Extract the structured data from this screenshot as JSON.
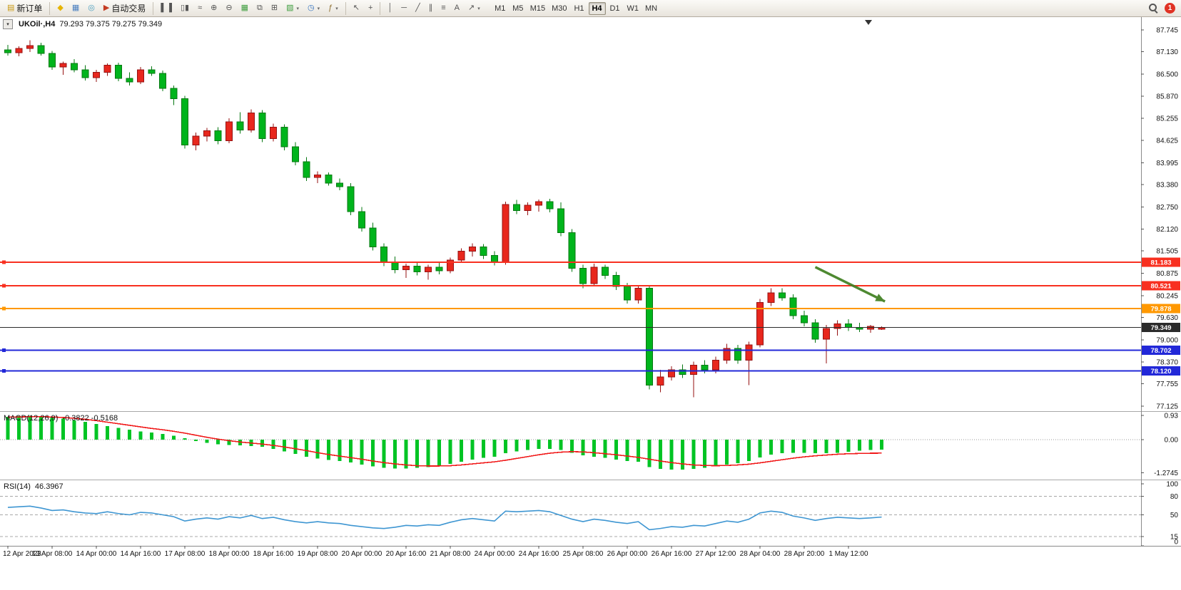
{
  "icons": {
    "chevron_down": "▾",
    "dropdown_arrow": "▾"
  },
  "toolbar": {
    "items": [
      {
        "type": "button",
        "name": "new-order-button",
        "icon": "new-order-icon",
        "glyph": "▤",
        "glyph_color": "#c89810",
        "label": "新订单"
      },
      {
        "type": "separator"
      },
      {
        "type": "button",
        "name": "charts-profile-button",
        "icon": "profile-diamond-icon",
        "glyph": "◆",
        "glyph_color": "#e6b400"
      },
      {
        "type": "button",
        "name": "market-watch-button",
        "icon": "market-watch-icon",
        "glyph": "▦",
        "glyph_color": "#4a7fc0"
      },
      {
        "type": "button",
        "name": "data-window-button",
        "icon": "data-window-icon",
        "glyph": "◎",
        "glyph_color": "#4a9fc0"
      },
      {
        "type": "button",
        "name": "auto-trading-button",
        "icon": "play-icon",
        "glyph": "▶",
        "glyph_color": "#c43b22",
        "label": "自动交易"
      },
      {
        "type": "separator"
      },
      {
        "type": "button",
        "name": "bar-chart-mode-button",
        "icon": "bar-chart-icon",
        "glyph": "▌▐"
      },
      {
        "type": "button",
        "name": "candlestick-mode-button",
        "icon": "candlestick-icon",
        "glyph": "▯▮"
      },
      {
        "type": "button",
        "name": "line-chart-mode-button",
        "icon": "line-chart-icon",
        "glyph": "≈"
      },
      {
        "type": "button",
        "name": "zoom-in-button",
        "icon": "zoom-in-icon",
        "glyph": "⊕"
      },
      {
        "type": "button",
        "name": "zoom-out-button",
        "icon": "zoom-out-icon",
        "glyph": "⊖"
      },
      {
        "type": "button",
        "name": "tile-windows-button",
        "icon": "tile-windows-icon",
        "glyph": "▦",
        "glyph_color": "#3f9e3f"
      },
      {
        "type": "button",
        "name": "cascade-windows-button",
        "icon": "cascade-windows-icon",
        "glyph": "⧉"
      },
      {
        "type": "button",
        "name": "arrange-windows-button",
        "icon": "arrange-windows-icon",
        "glyph": "⊞"
      },
      {
        "type": "button",
        "name": "new-chart-button",
        "icon": "new-chart-icon",
        "glyph": "▧",
        "glyph_color": "#3f9e3f",
        "dropdown": true
      },
      {
        "type": "button",
        "name": "period-button",
        "icon": "clock-icon",
        "glyph": "◷",
        "glyph_color": "#2f6fbf",
        "dropdown": true
      },
      {
        "type": "button",
        "name": "indicators-button",
        "icon": "indicator-function-icon",
        "glyph": "ƒ",
        "glyph_color": "#8f6f2f",
        "dropdown": true
      },
      {
        "type": "separator"
      },
      {
        "type": "button",
        "name": "cursor-tool-button",
        "icon": "cursor-arrow-icon",
        "glyph": "↖"
      },
      {
        "type": "button",
        "name": "crosshair-tool-button",
        "icon": "crosshair-icon",
        "glyph": "+"
      },
      {
        "type": "separator"
      },
      {
        "type": "button",
        "name": "vertical-line-tool-button",
        "icon": "vertical-line-icon",
        "glyph": "│"
      },
      {
        "type": "button",
        "name": "horizontal-line-tool-button",
        "icon": "horizontal-line-icon",
        "glyph": "─"
      },
      {
        "type": "button",
        "name": "trendline-tool-button",
        "icon": "trendline-icon",
        "glyph": "╱"
      },
      {
        "type": "button",
        "name": "channel-tool-button",
        "icon": "channel-icon",
        "glyph": "∥"
      },
      {
        "type": "button",
        "name": "fibonacci-tool-button",
        "icon": "fibonacci-icon",
        "glyph": "≡"
      },
      {
        "type": "button",
        "name": "text-tool-button",
        "icon": "text-icon",
        "glyph": "A"
      },
      {
        "type": "button",
        "name": "arrows-tool-button",
        "icon": "arrow-annotation-icon",
        "glyph": "↗",
        "dropdown": true
      }
    ],
    "timeframes": [
      "M1",
      "M5",
      "M15",
      "M30",
      "H1",
      "H4",
      "D1",
      "W1",
      "MN"
    ],
    "active_timeframe": "H4",
    "notification_count": "1"
  },
  "chart": {
    "symbol": "UKOil·,H4",
    "ohlc": "79.293 79.375 79.275 79.349",
    "macd_name": "MACD(12,26,9)",
    "macd_values": "-0.3822 -0.5168",
    "rsi_name": "RSI(14)",
    "rsi_value": "46.3967",
    "price_axis_labels": [
      "87.745",
      "87.130",
      "86.500",
      "85.870",
      "85.255",
      "84.625",
      "83.995",
      "83.380",
      "82.750",
      "82.120",
      "81.505",
      "80.875",
      "80.245",
      "79.630",
      "79.000",
      "78.370",
      "77.755",
      "77.125"
    ],
    "macd_axis_labels": [
      "0.93",
      "0.00",
      "-1.2745"
    ],
    "rsi_axis_labels": [
      "100",
      "80",
      "50",
      "15",
      "0"
    ]
  },
  "chart_data": {
    "type": "candlestick",
    "symbol": "UKOil",
    "timeframe": "H4",
    "ohlc_current": {
      "open": 79.293,
      "high": 79.375,
      "low": 79.275,
      "close": 79.349
    },
    "ylim": [
      77.125,
      87.745
    ],
    "bull_color": "#e8271d",
    "bull_border": "#961212",
    "bear_color": "#00b41c",
    "bear_border": "#067812",
    "candles": [
      [
        87.18,
        87.32,
        87.02,
        87.1
      ],
      [
        87.1,
        87.28,
        87.0,
        87.22
      ],
      [
        87.22,
        87.45,
        87.12,
        87.3
      ],
      [
        87.3,
        87.38,
        87.02,
        87.08
      ],
      [
        87.08,
        87.15,
        86.62,
        86.7
      ],
      [
        86.7,
        86.85,
        86.48,
        86.8
      ],
      [
        86.8,
        86.92,
        86.55,
        86.62
      ],
      [
        86.62,
        86.75,
        86.32,
        86.4
      ],
      [
        86.4,
        86.62,
        86.28,
        86.55
      ],
      [
        86.55,
        86.8,
        86.45,
        86.75
      ],
      [
        86.75,
        86.82,
        86.3,
        86.38
      ],
      [
        86.38,
        86.55,
        86.18,
        86.28
      ],
      [
        86.28,
        86.7,
        86.22,
        86.62
      ],
      [
        86.62,
        86.72,
        86.45,
        86.52
      ],
      [
        86.52,
        86.6,
        86.02,
        86.1
      ],
      [
        86.1,
        86.18,
        85.62,
        85.8
      ],
      [
        85.8,
        85.88,
        84.4,
        84.5
      ],
      [
        84.5,
        84.85,
        84.35,
        84.75
      ],
      [
        84.75,
        84.98,
        84.6,
        84.9
      ],
      [
        84.9,
        85.0,
        84.52,
        84.62
      ],
      [
        84.62,
        85.25,
        84.55,
        85.15
      ],
      [
        85.15,
        85.42,
        84.82,
        84.92
      ],
      [
        84.92,
        85.5,
        84.85,
        85.4
      ],
      [
        85.4,
        85.48,
        84.58,
        84.68
      ],
      [
        84.68,
        85.1,
        84.6,
        85.0
      ],
      [
        85.0,
        85.08,
        84.35,
        84.45
      ],
      [
        84.45,
        84.58,
        83.92,
        84.02
      ],
      [
        84.02,
        84.15,
        83.48,
        83.58
      ],
      [
        83.58,
        83.75,
        83.42,
        83.65
      ],
      [
        83.65,
        83.72,
        83.35,
        83.42
      ],
      [
        83.42,
        83.55,
        83.22,
        83.32
      ],
      [
        83.32,
        83.42,
        82.52,
        82.62
      ],
      [
        82.62,
        82.75,
        82.05,
        82.15
      ],
      [
        82.15,
        82.3,
        81.52,
        81.62
      ],
      [
        81.62,
        81.72,
        81.08,
        81.18
      ],
      [
        81.18,
        81.35,
        80.88,
        80.98
      ],
      [
        80.98,
        81.15,
        80.75,
        81.08
      ],
      [
        81.08,
        81.2,
        80.82,
        80.92
      ],
      [
        80.92,
        81.12,
        80.7,
        81.05
      ],
      [
        81.05,
        81.18,
        80.85,
        80.95
      ],
      [
        80.95,
        81.32,
        80.88,
        81.25
      ],
      [
        81.25,
        81.58,
        81.18,
        81.5
      ],
      [
        81.5,
        81.72,
        81.35,
        81.62
      ],
      [
        81.62,
        81.7,
        81.28,
        81.38
      ],
      [
        81.38,
        81.5,
        81.1,
        81.2
      ],
      [
        81.2,
        82.9,
        81.12,
        82.82
      ],
      [
        82.82,
        82.95,
        82.55,
        82.65
      ],
      [
        82.65,
        82.88,
        82.52,
        82.8
      ],
      [
        82.8,
        82.96,
        82.62,
        82.9
      ],
      [
        82.9,
        82.98,
        82.6,
        82.7
      ],
      [
        82.7,
        82.88,
        81.92,
        82.02
      ],
      [
        82.02,
        82.12,
        80.92,
        81.02
      ],
      [
        81.02,
        81.12,
        80.45,
        80.58
      ],
      [
        80.58,
        81.15,
        80.5,
        81.05
      ],
      [
        81.05,
        81.12,
        80.72,
        80.82
      ],
      [
        80.82,
        80.92,
        80.4,
        80.5
      ],
      [
        80.5,
        80.6,
        80.02,
        80.12
      ],
      [
        80.12,
        80.52,
        80.02,
        80.45
      ],
      [
        80.45,
        80.52,
        77.6,
        77.72
      ],
      [
        77.72,
        78.15,
        77.52,
        77.95
      ],
      [
        77.95,
        78.25,
        77.85,
        78.15
      ],
      [
        78.15,
        78.3,
        77.92,
        78.02
      ],
      [
        78.02,
        78.38,
        77.38,
        78.28
      ],
      [
        78.28,
        78.42,
        78.05,
        78.15
      ],
      [
        78.15,
        78.52,
        78.05,
        78.42
      ],
      [
        78.42,
        78.88,
        78.32,
        78.75
      ],
      [
        78.75,
        78.85,
        78.32,
        78.42
      ],
      [
        78.42,
        78.95,
        77.72,
        78.85
      ],
      [
        78.85,
        80.15,
        78.78,
        80.05
      ],
      [
        80.05,
        80.45,
        79.95,
        80.32
      ],
      [
        80.32,
        80.45,
        80.1,
        80.18
      ],
      [
        80.18,
        80.28,
        79.58,
        79.68
      ],
      [
        79.68,
        79.82,
        79.38,
        79.48
      ],
      [
        79.48,
        79.58,
        78.92,
        79.02
      ],
      [
        79.02,
        79.42,
        78.33,
        79.32
      ],
      [
        79.32,
        79.55,
        79.12,
        79.45
      ],
      [
        79.45,
        79.58,
        79.25,
        79.35
      ],
      [
        79.35,
        79.48,
        79.22,
        79.3
      ],
      [
        79.3,
        79.42,
        79.2,
        79.38
      ],
      [
        79.293,
        79.375,
        79.275,
        79.349
      ]
    ],
    "time_labels": [
      "12 Apr 2023",
      "13 Apr 08:00",
      "14 Apr 00:00",
      "14 Apr 16:00",
      "17 Apr 08:00",
      "18 Apr 00:00",
      "18 Apr 16:00",
      "19 Apr 08:00",
      "20 Apr 00:00",
      "20 Apr 16:00",
      "21 Apr 08:00",
      "24 Apr 00:00",
      "24 Apr 16:00",
      "25 Apr 08:00",
      "26 Apr 00:00",
      "26 Apr 16:00",
      "27 Apr 12:00",
      "28 Apr 04:00",
      "28 Apr 20:00",
      "1 May 12:00"
    ],
    "label_every_n_candles": 4,
    "hlines": [
      {
        "price": 81.183,
        "label": "81.183",
        "color": "#f83020",
        "width": 2
      },
      {
        "price": 80.521,
        "label": "80.521",
        "color": "#f83020",
        "width": 2
      },
      {
        "price": 79.878,
        "label": "79.878",
        "color": "#ff9800",
        "width": 2
      },
      {
        "price": 79.349,
        "label": "79.349",
        "color": "#2b2b2b",
        "width": 1,
        "current": true
      },
      {
        "price": 78.702,
        "label": "78.702",
        "color": "#2228d8",
        "width": 2
      },
      {
        "price": 78.12,
        "label": "78.120",
        "color": "#2228d8",
        "width": 2
      }
    ],
    "arrow_annotation": {
      "from": {
        "index": 73,
        "price": 81.05
      },
      "to": {
        "index": 79.3,
        "price": 80.08
      },
      "color": "#3f8020"
    },
    "indicators": {
      "macd": {
        "name": "MACD(12,26,9)",
        "main_current": -0.3822,
        "signal_current": -0.5168,
        "axis_range": [
          -1.2745,
          0.93
        ],
        "histogram_color": "#00c424",
        "signal_color": "#f01818",
        "main": [
          0.88,
          0.9,
          0.92,
          0.9,
          0.85,
          0.8,
          0.74,
          0.68,
          0.6,
          0.52,
          0.45,
          0.38,
          0.32,
          0.27,
          0.22,
          0.15,
          0.05,
          -0.05,
          -0.12,
          -0.18,
          -0.2,
          -0.22,
          -0.24,
          -0.28,
          -0.35,
          -0.45,
          -0.55,
          -0.65,
          -0.72,
          -0.78,
          -0.82,
          -0.88,
          -0.95,
          -1.02,
          -1.08,
          -1.1,
          -1.1,
          -1.08,
          -1.05,
          -1.0,
          -0.93,
          -0.85,
          -0.76,
          -0.7,
          -0.66,
          -0.52,
          -0.45,
          -0.4,
          -0.36,
          -0.35,
          -0.4,
          -0.5,
          -0.6,
          -0.65,
          -0.7,
          -0.76,
          -0.82,
          -0.85,
          -1.05,
          -1.12,
          -1.15,
          -1.15,
          -1.12,
          -1.08,
          -1.02,
          -0.95,
          -0.9,
          -0.82,
          -0.68,
          -0.58,
          -0.52,
          -0.5,
          -0.5,
          -0.52,
          -0.52,
          -0.5,
          -0.46,
          -0.43,
          -0.4,
          -0.3822
        ],
        "signal": [
          0.86,
          0.87,
          0.88,
          0.88,
          0.87,
          0.85,
          0.82,
          0.78,
          0.73,
          0.67,
          0.61,
          0.55,
          0.49,
          0.43,
          0.38,
          0.32,
          0.25,
          0.17,
          0.09,
          0.02,
          -0.04,
          -0.09,
          -0.13,
          -0.17,
          -0.22,
          -0.28,
          -0.35,
          -0.42,
          -0.5,
          -0.57,
          -0.63,
          -0.69,
          -0.75,
          -0.82,
          -0.88,
          -0.93,
          -0.97,
          -1.0,
          -1.01,
          -1.01,
          -1.0,
          -0.97,
          -0.93,
          -0.89,
          -0.85,
          -0.79,
          -0.72,
          -0.65,
          -0.58,
          -0.52,
          -0.48,
          -0.46,
          -0.47,
          -0.5,
          -0.54,
          -0.58,
          -0.63,
          -0.68,
          -0.75,
          -0.82,
          -0.88,
          -0.93,
          -0.97,
          -0.99,
          -1.0,
          -0.99,
          -0.97,
          -0.94,
          -0.89,
          -0.83,
          -0.77,
          -0.71,
          -0.66,
          -0.62,
          -0.59,
          -0.56,
          -0.54,
          -0.53,
          -0.52,
          -0.5168
        ]
      },
      "rsi": {
        "name": "RSI(14)",
        "current": 46.3967,
        "range": [
          0,
          100
        ],
        "levels": [
          80,
          50,
          15
        ],
        "line_color": "#3e96d2",
        "values": [
          62,
          63,
          64,
          61,
          57,
          58,
          55,
          53,
          52,
          55,
          52,
          50,
          54,
          53,
          50,
          47,
          40,
          43,
          45,
          43,
          47,
          45,
          49,
          44,
          46,
          42,
          39,
          37,
          39,
          37,
          36,
          33,
          31,
          29,
          28,
          30,
          33,
          32,
          34,
          33,
          38,
          42,
          44,
          42,
          40,
          56,
          55,
          56,
          57,
          55,
          49,
          43,
          39,
          43,
          41,
          38,
          36,
          39,
          26,
          28,
          31,
          30,
          33,
          32,
          36,
          40,
          38,
          43,
          53,
          56,
          54,
          48,
          45,
          41,
          44,
          46,
          45,
          44,
          45,
          46.4
        ]
      }
    }
  }
}
